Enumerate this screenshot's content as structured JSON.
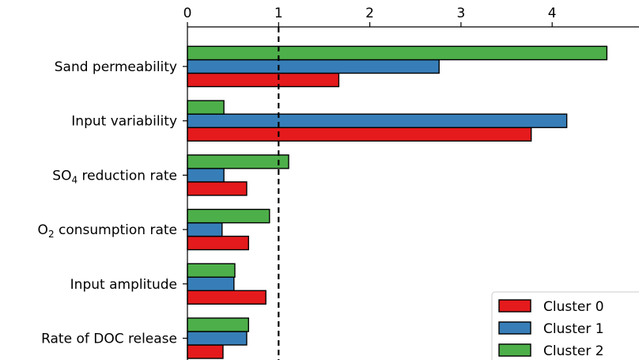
{
  "chart_data": {
    "type": "bar",
    "orientation": "horizontal",
    "title": "",
    "xlabel": "",
    "ylabel": "",
    "xlim": [
      0,
      4.6
    ],
    "x_ticks": [
      "0",
      "1",
      "2",
      "3",
      "4"
    ],
    "grid": false,
    "legend_position": "bottom-right",
    "reference_line": {
      "value": 1,
      "style": "dashed",
      "color": "#000000"
    },
    "categories": [
      {
        "pre": "Sand permeability",
        "sub": "",
        "post": ""
      },
      {
        "pre": "Input variability",
        "sub": "",
        "post": ""
      },
      {
        "pre": "SO",
        "sub": "4",
        "post": " reduction rate"
      },
      {
        "pre": "O",
        "sub": "2",
        "post": " consumption rate"
      },
      {
        "pre": "Input amplitude",
        "sub": "",
        "post": ""
      },
      {
        "pre": "Rate of DOC release",
        "sub": "",
        "post": ""
      }
    ],
    "series": [
      {
        "name": "Cluster 0",
        "color": "#e41a1c",
        "values": [
          1.66,
          3.77,
          0.65,
          0.67,
          0.86,
          0.39
        ]
      },
      {
        "name": "Cluster 1",
        "color": "#377eb8",
        "values": [
          2.76,
          4.16,
          0.4,
          0.38,
          0.51,
          0.65
        ]
      },
      {
        "name": "Cluster 2",
        "color": "#4daf4a",
        "values": [
          4.6,
          0.4,
          1.11,
          0.9,
          0.52,
          0.67
        ]
      }
    ]
  }
}
